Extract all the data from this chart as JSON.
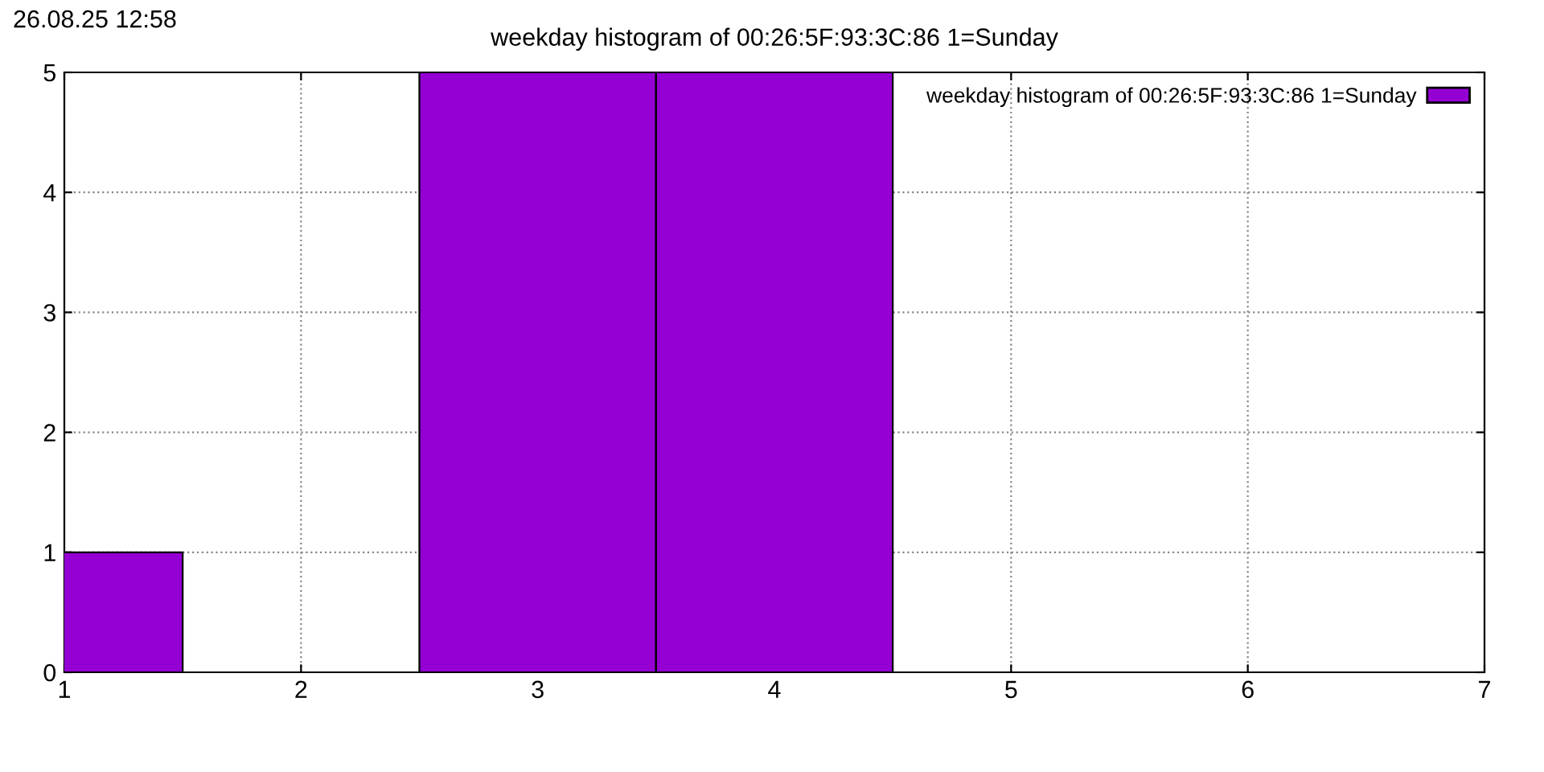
{
  "chart_data": {
    "type": "bar",
    "title": "weekday histogram of 00:26:5F:93:3C:86 1=Sunday",
    "annotations": [
      "26.08.25 12:58"
    ],
    "x": [
      1,
      3,
      4
    ],
    "series": [
      {
        "name": "weekday histogram of 00:26:5F:93:3C:86 1=Sunday",
        "color": "#9400d3",
        "values": [
          1,
          5,
          5
        ]
      }
    ],
    "xlim": [
      1,
      7
    ],
    "xticks": [
      1,
      2,
      3,
      4,
      5,
      6,
      7
    ],
    "ylim": [
      0,
      5
    ],
    "yticks": [
      0,
      1,
      2,
      3,
      4,
      5
    ],
    "grid": true,
    "legend": "top right"
  }
}
